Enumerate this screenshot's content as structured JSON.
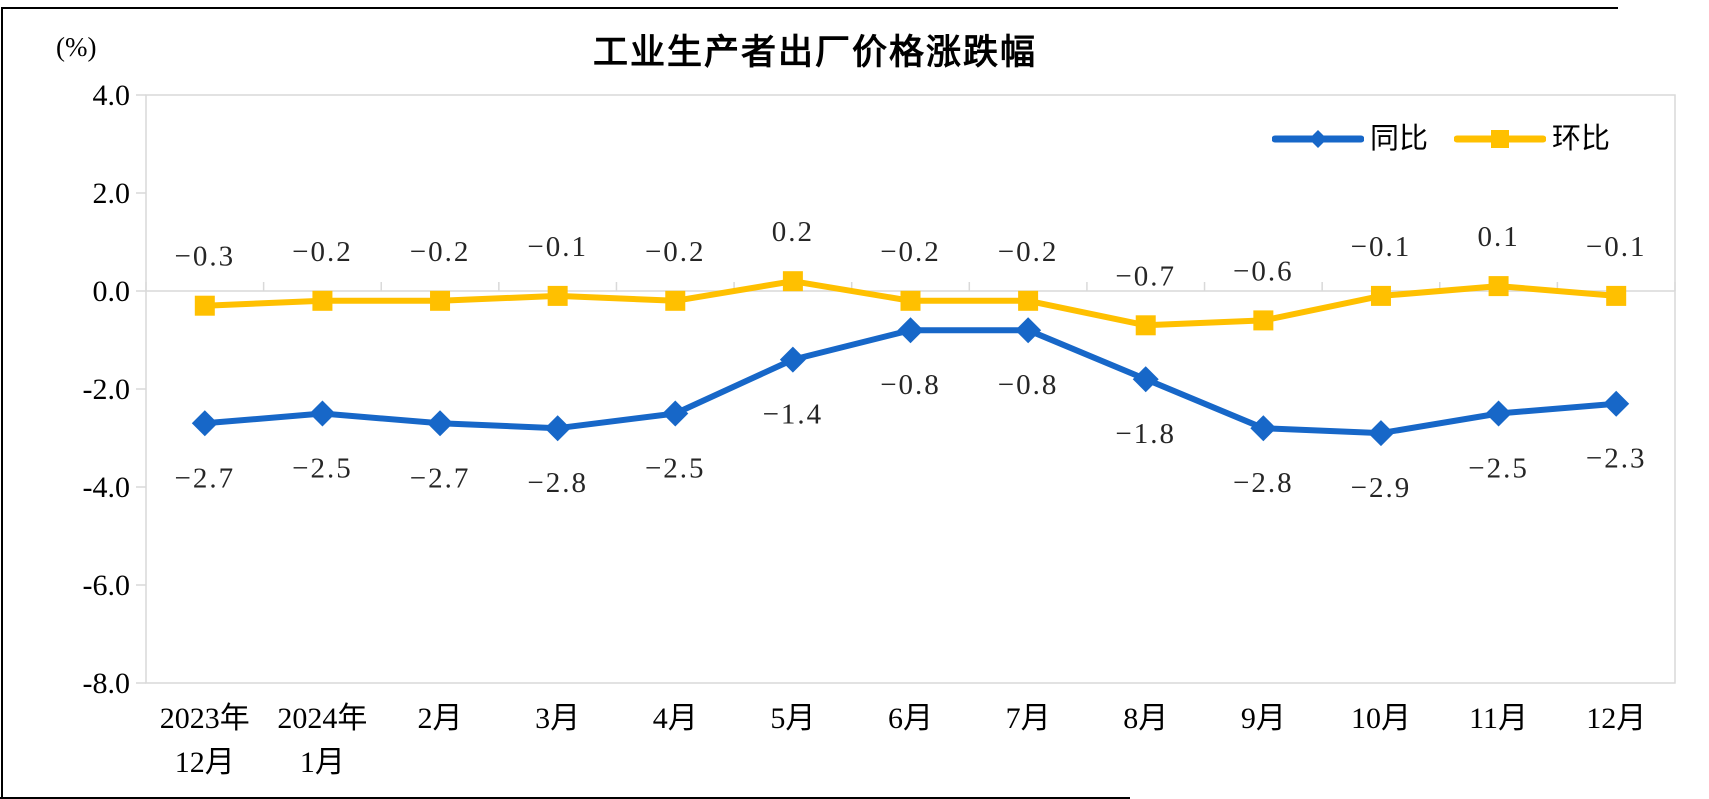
{
  "title": "工业生产者出厂价格涨跌幅",
  "y_axis_unit": "(%)",
  "legend": {
    "items": [
      {
        "label": "同比",
        "marker": "diamond",
        "color": "#1767C8"
      },
      {
        "label": "环比",
        "marker": "square",
        "color": "#FFC000"
      }
    ],
    "position": "top-right"
  },
  "chart_data": {
    "type": "line",
    "title": "工业生产者出厂价格涨跌幅",
    "categories": [
      "2023年\n12月",
      "2024年\n1月",
      "2月",
      "3月",
      "4月",
      "5月",
      "6月",
      "7月",
      "8月",
      "9月",
      "10月",
      "11月",
      "12月"
    ],
    "series": [
      {
        "name": "同比",
        "color": "#1767C8",
        "marker": "diamond",
        "values": [
          -2.7,
          -2.5,
          -2.7,
          -2.8,
          -2.5,
          -1.4,
          -0.8,
          -0.8,
          -1.8,
          -2.8,
          -2.9,
          -2.5,
          -2.3
        ]
      },
      {
        "name": "环比",
        "color": "#FFC000",
        "marker": "square",
        "values": [
          -0.3,
          -0.2,
          -0.2,
          -0.1,
          -0.2,
          0.2,
          -0.2,
          -0.2,
          -0.7,
          -0.6,
          -0.1,
          0.1,
          -0.1
        ]
      }
    ],
    "ylabel": "(%)",
    "ylim": [
      -8,
      4
    ],
    "yticks": [
      4,
      2,
      0,
      -2,
      -4,
      -6,
      -8
    ],
    "grid": false,
    "legend_position": "top-right",
    "axis_color": "#D9D9D9",
    "data_label_color": "#262626"
  }
}
